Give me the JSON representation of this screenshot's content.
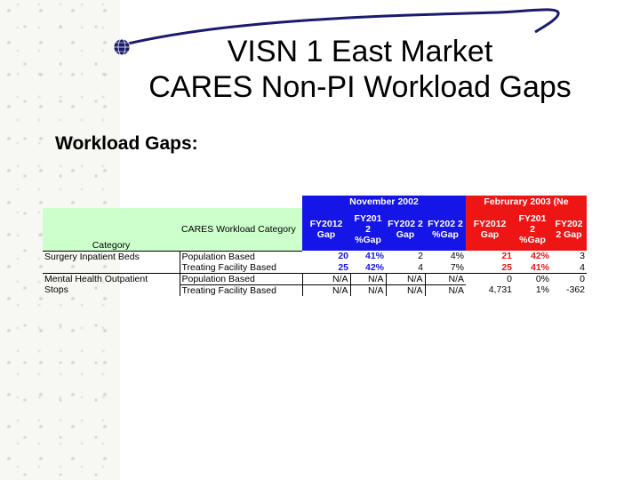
{
  "slide": {
    "title_line1": "VISN 1 East Market",
    "title_line2": "CARES Non-PI Workload Gaps",
    "subheading": "Workload Gaps:"
  },
  "table": {
    "group_headers": {
      "november": "November 2002",
      "february": "Februrary 2003 (Ne"
    },
    "col_headers": {
      "category": "Category",
      "cares_category": "CARES Workload Category",
      "nov_fy2012": "FY2012 Gap",
      "nov_fy201": "FY201 2 %Gap",
      "nov_fy202": "FY202 2 Gap",
      "nov_fy202pct": "FY202 2 %Gap",
      "feb_fy2012": "FY2012 Gap",
      "feb_fy201": "FY201 2 %Gap",
      "feb_fy202": "FY202 2 Gap"
    },
    "rows": [
      {
        "category": "Surgery Inpatient Beds",
        "cares": "Population Based",
        "v": [
          "20",
          "41%",
          "2",
          "4%",
          "21",
          "42%",
          "3"
        ]
      },
      {
        "category": "",
        "cares": "Treating Facility Based",
        "v": [
          "25",
          "42%",
          "4",
          "7%",
          "25",
          "41%",
          "4"
        ]
      },
      {
        "category": "Mental Health Outpatient",
        "cares": "Population Based",
        "v": [
          "N/A",
          "N/A",
          "N/A",
          "N/A",
          "0",
          "0%",
          "0"
        ]
      },
      {
        "category": "Stops",
        "cares": "Treating Facility Based",
        "v": [
          "N/A",
          "N/A",
          "N/A",
          "N/A",
          "4,731",
          "1%",
          "-362"
        ]
      }
    ]
  },
  "colors": {
    "nov_header": "#1515e8",
    "feb_header": "#ee1515",
    "category_header": "#ccffcc",
    "title_swoosh": "#1a1a6e"
  }
}
